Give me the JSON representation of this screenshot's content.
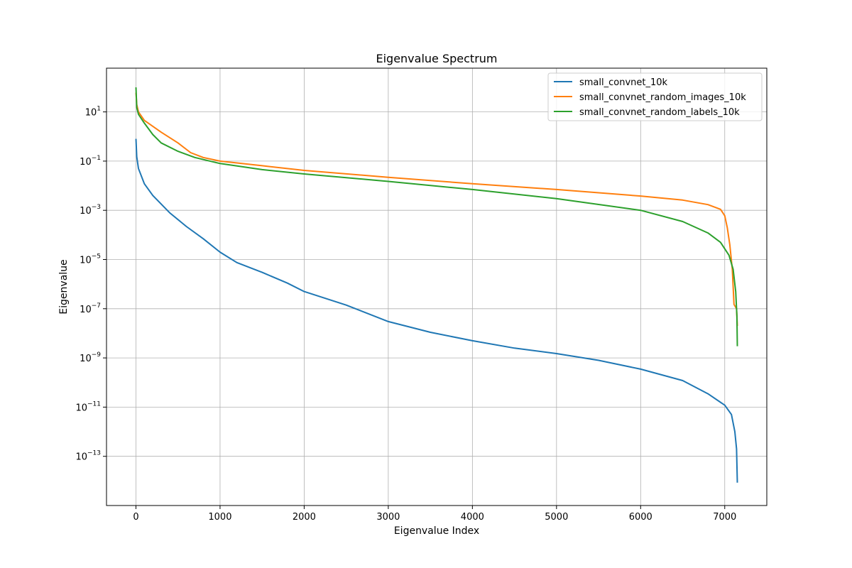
{
  "chart_data": {
    "type": "line",
    "title": "Eigenvalue Spectrum",
    "xlabel": "Eigenvalue Index",
    "ylabel": "Eigenvalue",
    "xlim": [
      -350,
      7500
    ],
    "ylim": [
      1e-15,
      600
    ],
    "yscale": "log",
    "grid": true,
    "legend_position": "top-right",
    "x_ticks": [
      0,
      1000,
      2000,
      3000,
      4000,
      5000,
      6000,
      7000
    ],
    "x_tick_labels": [
      "0",
      "1000",
      "2000",
      "3000",
      "4000",
      "5000",
      "6000",
      "7000"
    ],
    "y_ticks": [
      1e-13,
      1e-11,
      1e-09,
      1e-07,
      1e-05,
      0.001,
      0.1,
      10
    ],
    "y_tick_labels": [
      {
        "base": "10",
        "exp": "−13"
      },
      {
        "base": "10",
        "exp": "−11"
      },
      {
        "base": "10",
        "exp": "−9"
      },
      {
        "base": "10",
        "exp": "−7"
      },
      {
        "base": "10",
        "exp": "−5"
      },
      {
        "base": "10",
        "exp": "−3"
      },
      {
        "base": "10",
        "exp": "−1"
      },
      {
        "base": "10",
        "exp": "1"
      }
    ],
    "series": [
      {
        "name": "small_convnet_10k",
        "color": "#1f77b4",
        "points": [
          [
            0,
            0.8
          ],
          [
            10,
            0.15
          ],
          [
            30,
            0.05
          ],
          [
            100,
            0.012
          ],
          [
            200,
            0.004
          ],
          [
            400,
            0.0008
          ],
          [
            600,
            0.00022
          ],
          [
            800,
            7e-05
          ],
          [
            1000,
            2e-05
          ],
          [
            1200,
            7.5e-06
          ],
          [
            1500,
            3e-06
          ],
          [
            1800,
            1.1e-06
          ],
          [
            2000,
            5e-07
          ],
          [
            2500,
            1.4e-07
          ],
          [
            3000,
            3e-08
          ],
          [
            3500,
            1.1e-08
          ],
          [
            4000,
            5e-09
          ],
          [
            4500,
            2.5e-09
          ],
          [
            5000,
            1.5e-09
          ],
          [
            5500,
            8e-10
          ],
          [
            6000,
            3.5e-10
          ],
          [
            6500,
            1.2e-10
          ],
          [
            6800,
            3.5e-11
          ],
          [
            7000,
            1.2e-11
          ],
          [
            7080,
            5e-12
          ],
          [
            7120,
            1e-12
          ],
          [
            7140,
            2e-13
          ],
          [
            7150,
            8.5e-15
          ]
        ]
      },
      {
        "name": "small_convnet_random_images_10k",
        "color": "#ff7f0e",
        "points": [
          [
            0,
            60
          ],
          [
            10,
            20
          ],
          [
            30,
            10
          ],
          [
            100,
            4.5
          ],
          [
            300,
            1.5
          ],
          [
            500,
            0.55
          ],
          [
            650,
            0.22
          ],
          [
            800,
            0.14
          ],
          [
            1000,
            0.1
          ],
          [
            1500,
            0.065
          ],
          [
            2000,
            0.042
          ],
          [
            3000,
            0.022
          ],
          [
            4000,
            0.012
          ],
          [
            5000,
            0.007
          ],
          [
            6000,
            0.0038
          ],
          [
            6500,
            0.0026
          ],
          [
            6800,
            0.0017
          ],
          [
            6950,
            0.0011
          ],
          [
            7000,
            0.0006
          ],
          [
            7030,
            0.0002
          ],
          [
            7060,
            4e-05
          ],
          [
            7090,
            4e-06
          ],
          [
            7110,
            1.5e-07
          ],
          [
            7140,
            1e-07
          ],
          [
            7150,
            2e-08
          ]
        ]
      },
      {
        "name": "small_convnet_random_labels_10k",
        "color": "#2ca02c",
        "points": [
          [
            0,
            100
          ],
          [
            10,
            15
          ],
          [
            30,
            8
          ],
          [
            100,
            3.5
          ],
          [
            200,
            1.2
          ],
          [
            300,
            0.55
          ],
          [
            500,
            0.25
          ],
          [
            700,
            0.14
          ],
          [
            1000,
            0.08
          ],
          [
            1500,
            0.045
          ],
          [
            2000,
            0.03
          ],
          [
            3000,
            0.015
          ],
          [
            4000,
            0.007
          ],
          [
            5000,
            0.003
          ],
          [
            6000,
            0.001
          ],
          [
            6500,
            0.00035
          ],
          [
            6800,
            0.00012
          ],
          [
            6950,
            5e-05
          ],
          [
            7050,
            1.5e-05
          ],
          [
            7100,
            4e-06
          ],
          [
            7130,
            5e-07
          ],
          [
            7145,
            5e-08
          ],
          [
            7150,
            3e-09
          ]
        ]
      }
    ]
  }
}
